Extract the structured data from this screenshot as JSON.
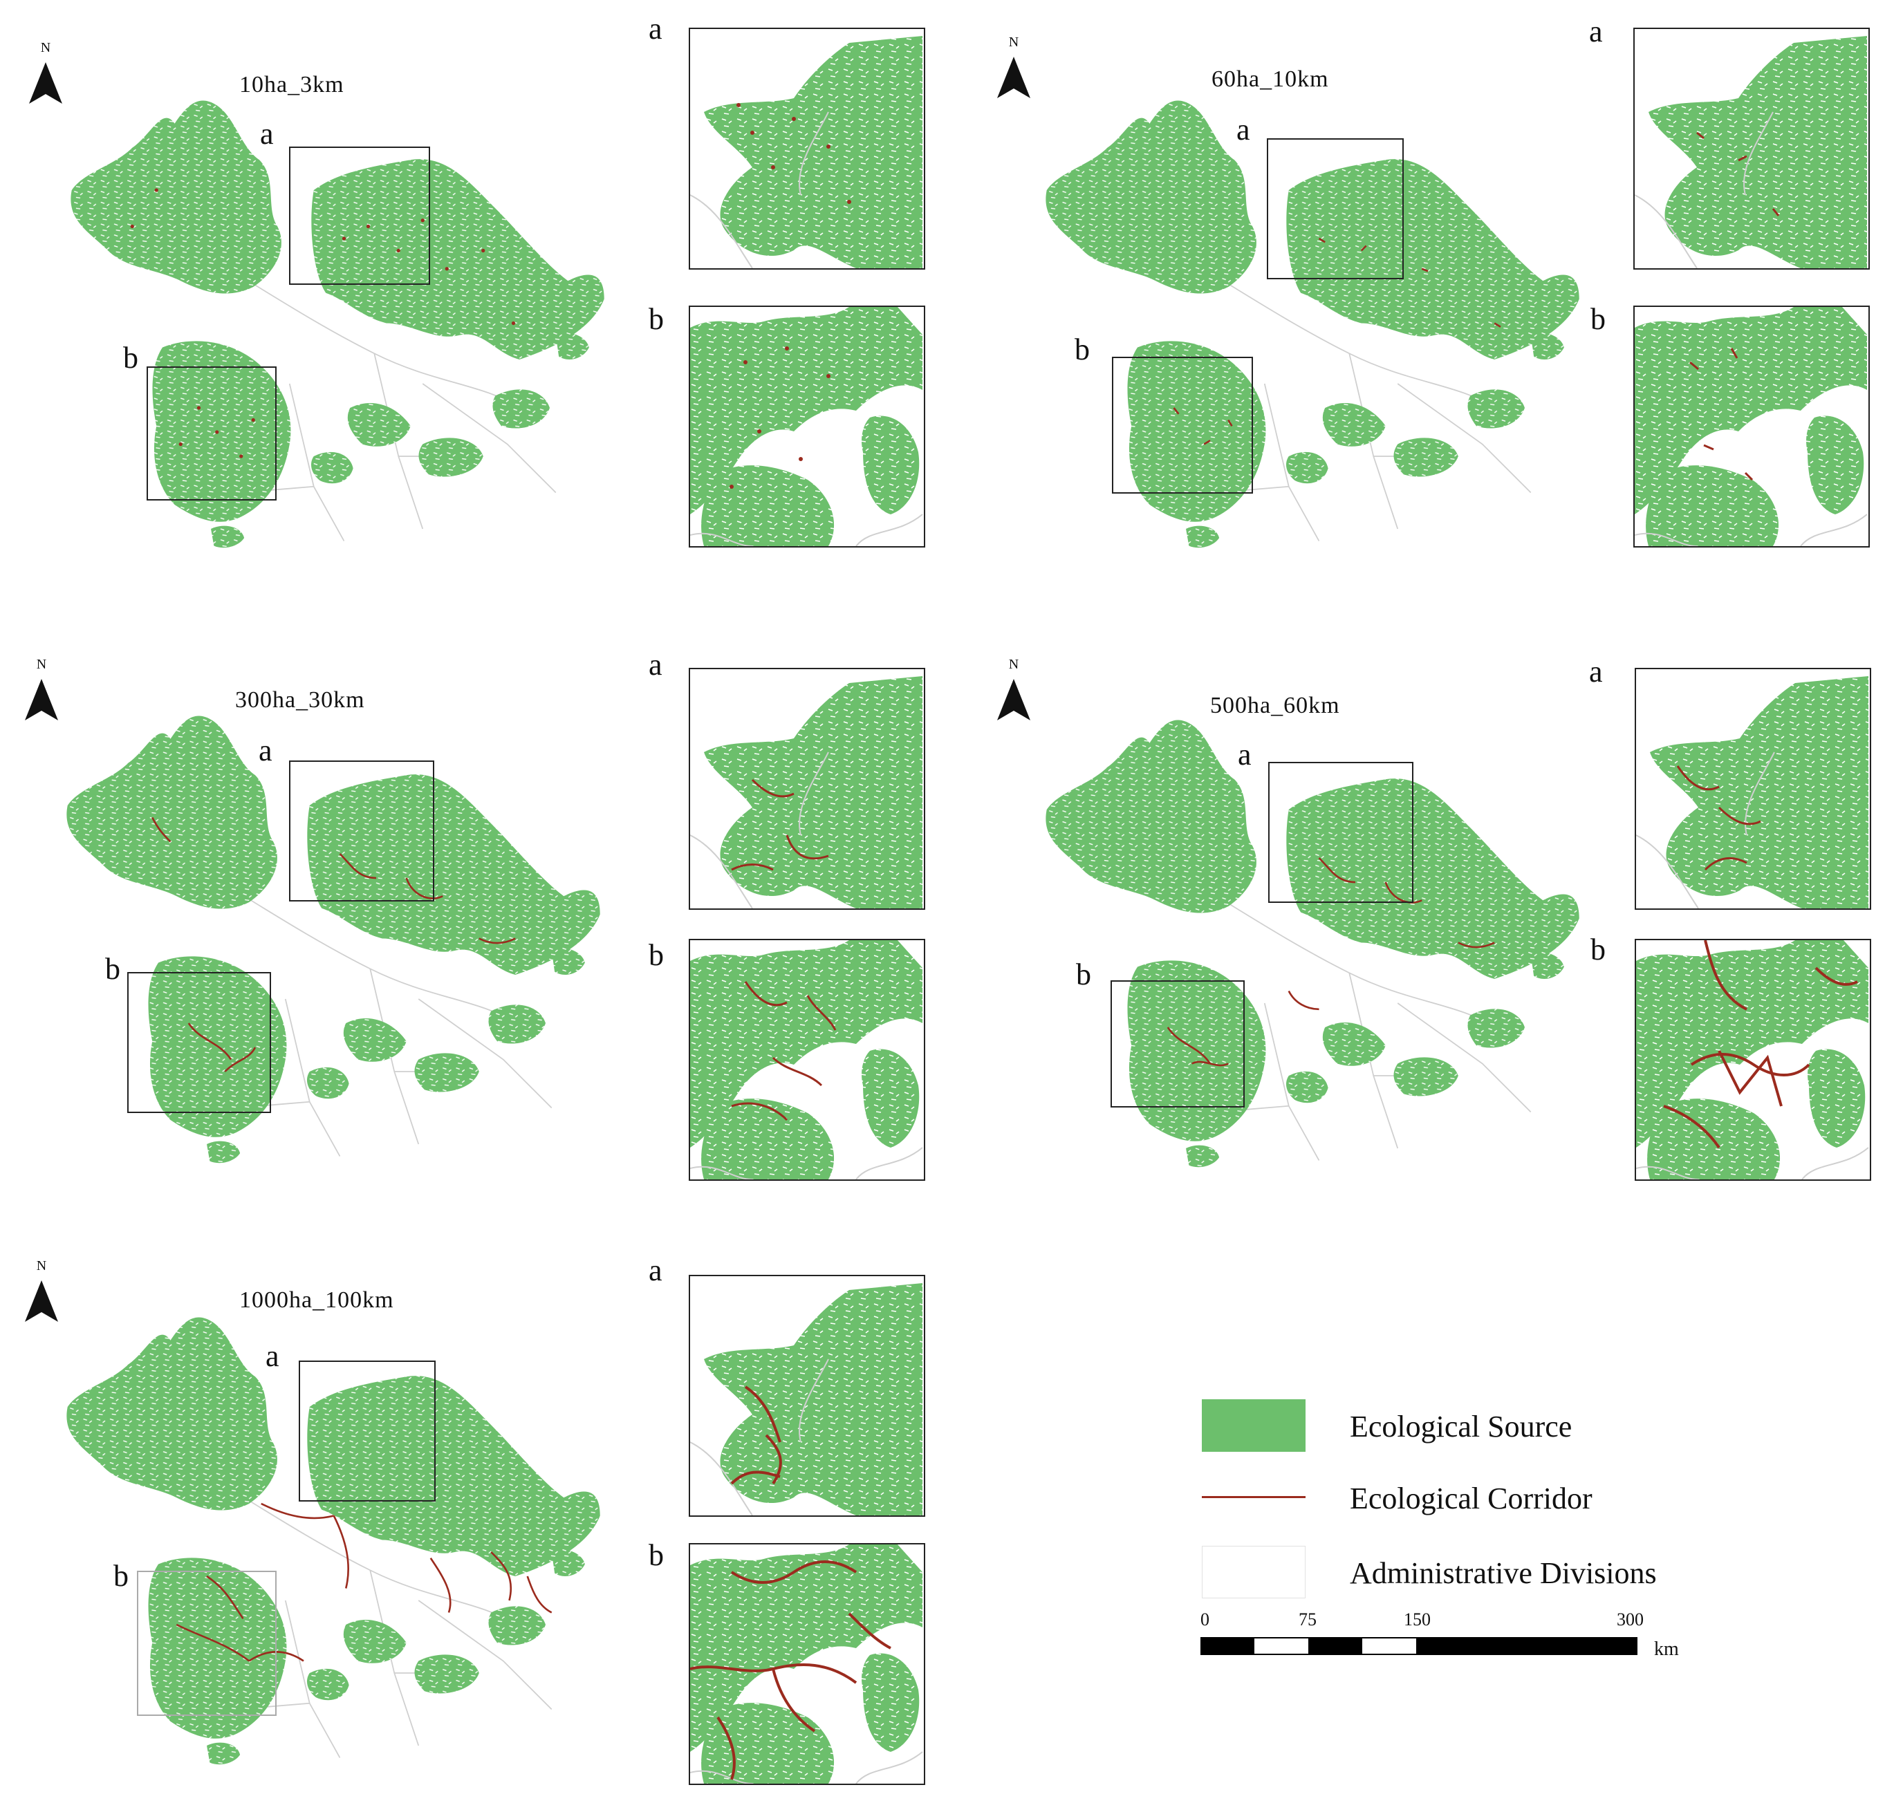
{
  "colors": {
    "source": "#6cbf6c",
    "corridor": "#9b2b1e",
    "admin": "#cfcfcf",
    "frame": "#222222"
  },
  "north_label": "N",
  "panels": [
    {
      "id": "p1",
      "title": "10ha_3km",
      "label_a": "a",
      "label_b": "b",
      "corridor_density": "dots"
    },
    {
      "id": "p2",
      "title": "60ha_10km",
      "label_a": "a",
      "label_b": "b",
      "corridor_density": "short"
    },
    {
      "id": "p3",
      "title": "300ha_30km",
      "label_a": "a",
      "label_b": "b",
      "corridor_density": "medium"
    },
    {
      "id": "p4",
      "title": "500ha_60km",
      "label_a": "a",
      "label_b": "b",
      "corridor_density": "medium"
    },
    {
      "id": "p5",
      "title": "1000ha_100km",
      "label_a": "a",
      "label_b": "b",
      "corridor_density": "long"
    }
  ],
  "legend": {
    "source": "Ecological Source",
    "corridor": "Ecological Corridor",
    "admin": "Administrative Divisions"
  },
  "scale_bar": {
    "ticks": [
      "0",
      "75",
      "150",
      "300"
    ],
    "unit": "km"
  }
}
